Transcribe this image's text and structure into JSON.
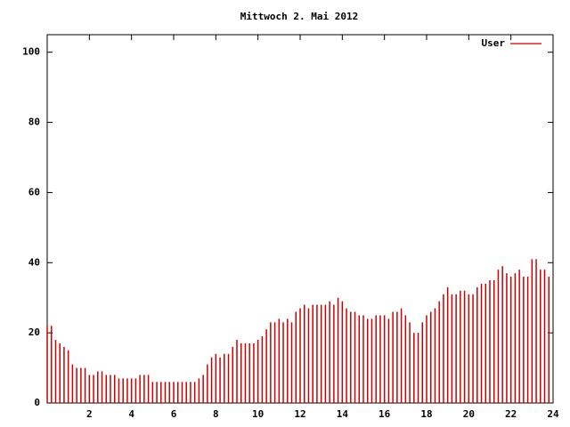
{
  "chart_data": {
    "type": "impulse",
    "title": "Mittwoch 2. Mai 2012",
    "x": [
      0,
      0.2,
      0.4,
      0.6,
      0.8,
      1,
      1.2,
      1.4,
      1.6,
      1.8,
      2,
      2.2,
      2.4,
      2.6,
      2.8,
      3,
      3.2,
      3.4,
      3.6,
      3.8,
      4,
      4.2,
      4.4,
      4.6,
      4.8,
      5,
      5.2,
      5.4,
      5.6,
      5.8,
      6,
      6.2,
      6.4,
      6.6,
      6.8,
      7,
      7.2,
      7.4,
      7.6,
      7.8,
      8,
      8.2,
      8.4,
      8.6,
      8.8,
      9,
      9.2,
      9.4,
      9.6,
      9.8,
      10,
      10.2,
      10.4,
      10.6,
      10.8,
      11,
      11.2,
      11.4,
      11.6,
      11.8,
      12,
      12.2,
      12.4,
      12.6,
      12.8,
      13,
      13.2,
      13.4,
      13.6,
      13.8,
      14,
      14.2,
      14.4,
      14.6,
      14.8,
      15,
      15.2,
      15.4,
      15.6,
      15.8,
      16,
      16.2,
      16.4,
      16.6,
      16.8,
      17,
      17.2,
      17.4,
      17.6,
      17.8,
      18,
      18.2,
      18.4,
      18.6,
      18.8,
      19,
      19.2,
      19.4,
      19.6,
      19.8,
      20,
      20.2,
      20.4,
      20.6,
      20.8,
      21,
      21.2,
      21.4,
      21.6,
      21.8,
      22,
      22.2,
      22.4,
      22.6,
      22.8,
      23,
      23.2,
      23.4,
      23.6,
      23.8
    ],
    "series": [
      {
        "name": "User",
        "color": "#cc0000",
        "values": [
          22,
          22,
          18,
          17,
          16,
          15,
          11,
          10,
          10,
          10,
          8,
          8,
          9,
          9,
          8,
          8,
          8,
          7,
          7,
          7,
          7,
          7,
          8,
          8,
          8,
          6,
          6,
          6,
          6,
          6,
          6,
          6,
          6,
          6,
          6,
          6,
          7,
          8,
          11,
          13,
          14,
          13,
          14,
          14,
          16,
          18,
          17,
          17,
          17,
          17,
          18,
          19,
          21,
          23,
          23,
          24,
          23,
          24,
          23,
          26,
          27,
          28,
          27,
          28,
          28,
          28,
          28,
          29,
          28,
          30,
          29,
          27,
          26,
          26,
          25,
          25,
          24,
          24,
          25,
          25,
          25,
          24,
          26,
          26,
          27,
          25,
          23,
          20,
          20,
          23,
          25,
          26,
          27,
          29,
          31,
          33,
          31,
          31,
          32,
          32,
          31,
          31,
          33,
          34,
          34,
          35,
          35,
          38,
          39,
          37,
          36,
          37,
          38,
          36,
          36,
          41,
          41,
          38,
          38,
          36
        ]
      }
    ],
    "xlim": [
      0,
      24
    ],
    "xticks": [
      2,
      4,
      6,
      8,
      10,
      12,
      14,
      16,
      18,
      20,
      22,
      24
    ],
    "ylim": [
      0,
      105
    ],
    "yticks": [
      0,
      20,
      40,
      60,
      80,
      100
    ],
    "grid": false,
    "legend": "top-right"
  }
}
